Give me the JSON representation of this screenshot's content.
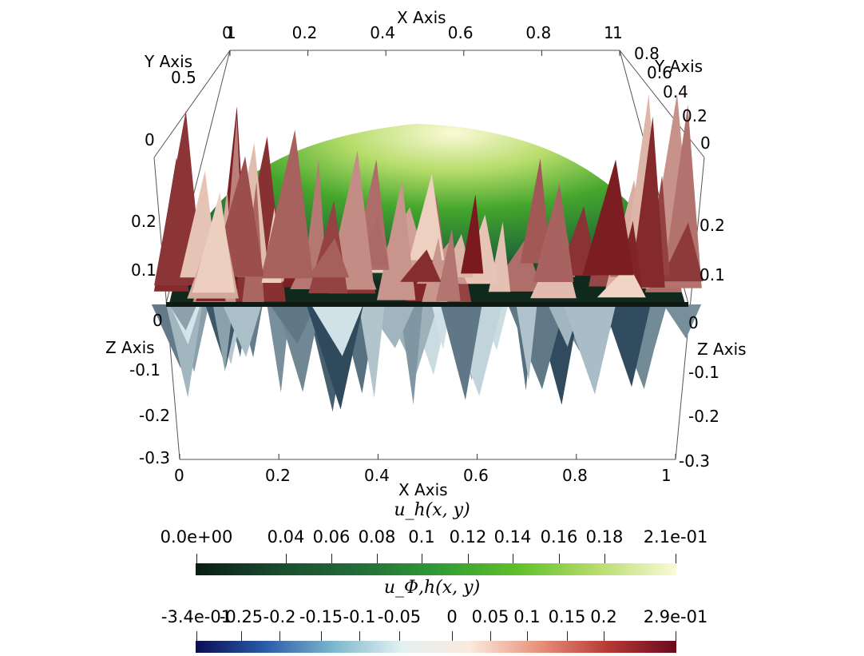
{
  "axes": {
    "x_top": {
      "title": "X Axis",
      "ticks": [
        "0",
        "0.2",
        "0.4",
        "0.6",
        "0.8",
        "1"
      ]
    },
    "x_bottom": {
      "title": "X Axis",
      "ticks": [
        "0",
        "0.2",
        "0.4",
        "0.6",
        "0.8",
        "1"
      ]
    },
    "y_left": {
      "title": "Y Axis",
      "ticks": [
        "1",
        "0.5",
        "0"
      ]
    },
    "y_right": {
      "title": "Y Axis",
      "ticks": [
        "1",
        "0.8",
        "0.6",
        "0.4",
        "0.2",
        "0"
      ]
    },
    "z_left": {
      "title": "Z Axis",
      "ticks": [
        "0.2",
        "0.1",
        "0",
        "-0.1",
        "-0.2",
        "-0.3"
      ]
    },
    "z_right": {
      "title": "Z Axis",
      "ticks": [
        "0.2",
        "0.1",
        "0",
        "-0.1",
        "-0.2",
        "-0.3"
      ]
    }
  },
  "colorbar_uh": {
    "title": "u_h(x, y)",
    "tick_labels": [
      "0.0e+00",
      "0.04",
      "0.06",
      "0.08",
      "0.1",
      "0.12",
      "0.14",
      "0.16",
      "0.18",
      "2.1e-01"
    ],
    "range": [
      0,
      0.21
    ],
    "colormap": [
      "#0a1e14",
      "#1a4a2e",
      "#236b38",
      "#2f9a35",
      "#5fbf2a",
      "#b6dc6a",
      "#fbfad8"
    ]
  },
  "colorbar_uphi": {
    "title": "u_Φ,h(x, y)",
    "tick_labels": [
      "-3.4e-01",
      "-0.25",
      "-0.2",
      "-0.15",
      "-0.1",
      "-0.05",
      "0",
      "0.05",
      "0.1",
      "0.15",
      "0.2",
      "2.9e-01"
    ],
    "range": [
      -0.34,
      0.29
    ],
    "colormap": [
      "#0a0e55",
      "#2a5aa8",
      "#7cb6cc",
      "#e3f1f1",
      "#fbe9dc",
      "#e8917c",
      "#b53a35",
      "#6a0a1e"
    ]
  },
  "chart_data": {
    "type": "surface",
    "title": "",
    "xlabel": "X Axis",
    "ylabel": "Y Axis",
    "zlabel": "Z Axis",
    "xlim": [
      0,
      1
    ],
    "ylim": [
      0,
      1
    ],
    "zlim": [
      -0.3,
      0.25
    ],
    "series": [
      {
        "name": "u_h(x, y)",
        "kind": "smooth dome",
        "min": 0,
        "max": 0.21
      },
      {
        "name": "u_Φ,h(x, y)",
        "kind": "oscillating spikes",
        "min": -0.34,
        "max": 0.29
      }
    ]
  }
}
